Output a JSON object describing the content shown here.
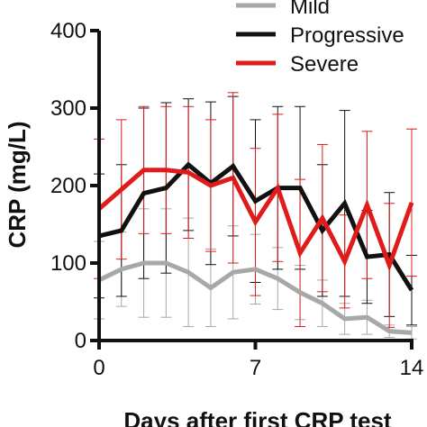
{
  "chart_data": {
    "type": "line",
    "title": "",
    "xlabel": "Days after first CRP test",
    "ylabel": "CRP (mg/L)",
    "xlim": [
      0,
      14
    ],
    "ylim": [
      0,
      400
    ],
    "xticks": [
      0,
      7,
      14
    ],
    "yticks": [
      0,
      100,
      200,
      300,
      400
    ],
    "grid": false,
    "legend_position": "top-right",
    "x": [
      0,
      1,
      2,
      3,
      4,
      5,
      6,
      7,
      8,
      9,
      10,
      11,
      12,
      13,
      14
    ],
    "series": [
      {
        "name": "Mild",
        "color": "#a8a8a8",
        "values": [
          78,
          92,
          100,
          100,
          88,
          68,
          88,
          92,
          80,
          62,
          48,
          28,
          30,
          12,
          10
        ],
        "error": [
          50,
          48,
          70,
          70,
          70,
          50,
          60,
          45,
          40,
          35,
          30,
          20,
          22,
          8,
          8
        ]
      },
      {
        "name": "Progressive",
        "color": "#111111",
        "values": [
          135,
          142,
          190,
          197,
          227,
          203,
          225,
          180,
          197,
          197,
          142,
          177,
          108,
          111,
          65
        ],
        "error": [
          80,
          85,
          110,
          110,
          85,
          105,
          90,
          105,
          105,
          105,
          85,
          120,
          60,
          80,
          45
        ]
      },
      {
        "name": "Severe",
        "color": "#e01b1b",
        "values": [
          170,
          195,
          220,
          220,
          217,
          200,
          210,
          153,
          197,
          113,
          158,
          102,
          175,
          97,
          178
        ],
        "error": [
          90,
          90,
          82,
          82,
          85,
          85,
          110,
          95,
          95,
          95,
          95,
          60,
          95,
          80,
          95
        ]
      }
    ]
  }
}
